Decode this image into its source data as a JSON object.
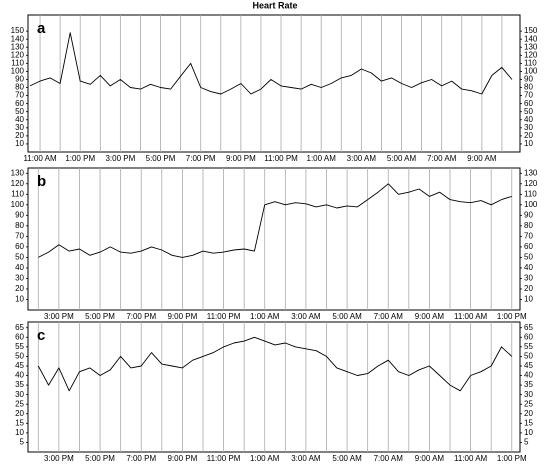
{
  "title": "Heart Rate",
  "chart_data": [
    {
      "type": "line",
      "label": "a",
      "color": "#000000",
      "grid": true,
      "xlim": [
        0.4,
        24.9
      ],
      "ylim": [
        0,
        170
      ],
      "yticks": [
        10,
        20,
        30,
        40,
        50,
        60,
        70,
        80,
        90,
        100,
        110,
        120,
        130,
        140,
        150
      ],
      "xticks": [
        {
          "value": 1,
          "label": "11:00 AM"
        },
        {
          "value": 2,
          "label": null
        },
        {
          "value": 3,
          "label": "1:00 PM"
        },
        {
          "value": 4,
          "label": null
        },
        {
          "value": 5,
          "label": "3:00 PM"
        },
        {
          "value": 6,
          "label": null
        },
        {
          "value": 7,
          "label": "5:00 PM"
        },
        {
          "value": 8,
          "label": null
        },
        {
          "value": 9,
          "label": "7:00 PM"
        },
        {
          "value": 10,
          "label": null
        },
        {
          "value": 11,
          "label": "9:00 PM"
        },
        {
          "value": 12,
          "label": null
        },
        {
          "value": 13,
          "label": "11:00 PM"
        },
        {
          "value": 14,
          "label": null
        },
        {
          "value": 15,
          "label": "1:00 AM"
        },
        {
          "value": 16,
          "label": null
        },
        {
          "value": 17,
          "label": "3:00 AM"
        },
        {
          "value": 18,
          "label": null
        },
        {
          "value": 19,
          "label": "5:00 AM"
        },
        {
          "value": 20,
          "label": null
        },
        {
          "value": 21,
          "label": "7:00 AM"
        },
        {
          "value": 22,
          "label": null
        },
        {
          "value": 23,
          "label": "9:00 AM"
        },
        {
          "value": 24,
          "label": null
        }
      ],
      "x": [
        0.5,
        1,
        1.5,
        2,
        2.5,
        3,
        3.5,
        4,
        4.5,
        5,
        5.5,
        6,
        6.5,
        7,
        7.5,
        8,
        8.5,
        9,
        9.5,
        10,
        10.5,
        11,
        11.5,
        12,
        12.5,
        13,
        13.5,
        14,
        14.5,
        15,
        15.5,
        16,
        16.5,
        17,
        17.5,
        18,
        18.5,
        19,
        19.5,
        20,
        20.5,
        21,
        21.5,
        22,
        22.5,
        23,
        23.5,
        24,
        24.5
      ],
      "values": [
        82,
        88,
        92,
        85,
        148,
        88,
        84,
        95,
        82,
        90,
        80,
        78,
        84,
        80,
        78,
        94,
        110,
        80,
        75,
        72,
        78,
        85,
        72,
        78,
        90,
        82,
        80,
        78,
        84,
        80,
        85,
        92,
        95,
        103,
        98,
        88,
        92,
        85,
        80,
        86,
        90,
        82,
        88,
        78,
        76,
        72,
        95,
        105,
        90
      ]
    },
    {
      "type": "line",
      "label": "b",
      "color": "#000000",
      "grid": true,
      "xlim": [
        1.5,
        25.4
      ],
      "ylim": [
        0,
        135
      ],
      "yticks": [
        10,
        20,
        30,
        40,
        50,
        60,
        70,
        80,
        90,
        100,
        110,
        120,
        130
      ],
      "xticks": [
        {
          "value": 2,
          "label": null
        },
        {
          "value": 3,
          "label": "3:00 PM"
        },
        {
          "value": 4,
          "label": null
        },
        {
          "value": 5,
          "label": "5:00 PM"
        },
        {
          "value": 6,
          "label": null
        },
        {
          "value": 7,
          "label": "7:00 PM"
        },
        {
          "value": 8,
          "label": null
        },
        {
          "value": 9,
          "label": "9:00 PM"
        },
        {
          "value": 10,
          "label": null
        },
        {
          "value": 11,
          "label": "11:00 PM"
        },
        {
          "value": 12,
          "label": null
        },
        {
          "value": 13,
          "label": "1:00 AM"
        },
        {
          "value": 14,
          "label": null
        },
        {
          "value": 15,
          "label": "3:00 AM"
        },
        {
          "value": 16,
          "label": null
        },
        {
          "value": 17,
          "label": "5:00 AM"
        },
        {
          "value": 18,
          "label": null
        },
        {
          "value": 19,
          "label": "7:00 AM"
        },
        {
          "value": 20,
          "label": null
        },
        {
          "value": 21,
          "label": "9:00 AM"
        },
        {
          "value": 22,
          "label": null
        },
        {
          "value": 23,
          "label": "11:00 AM"
        },
        {
          "value": 24,
          "label": null
        },
        {
          "value": 25,
          "label": "1:00 PM"
        }
      ],
      "x": [
        2,
        2.5,
        3,
        3.5,
        4,
        4.5,
        5,
        5.5,
        6,
        6.5,
        7,
        7.5,
        8,
        8.5,
        9,
        9.5,
        10,
        10.5,
        11,
        11.5,
        12,
        12.5,
        13,
        13.5,
        14,
        14.5,
        15,
        15.5,
        16,
        16.5,
        17,
        17.5,
        18,
        18.5,
        19,
        19.5,
        20,
        20.5,
        21,
        21.5,
        22,
        22.5,
        23,
        23.5,
        24,
        24.5,
        25
      ],
      "values": [
        50,
        55,
        62,
        56,
        58,
        52,
        55,
        60,
        55,
        54,
        56,
        60,
        57,
        52,
        50,
        52,
        56,
        54,
        55,
        57,
        58,
        56,
        100,
        103,
        100,
        102,
        101,
        98,
        100,
        97,
        99,
        98,
        105,
        112,
        120,
        110,
        112,
        115,
        108,
        112,
        105,
        103,
        102,
        104,
        100,
        105,
        108
      ]
    },
    {
      "type": "line",
      "label": "c",
      "color": "#000000",
      "grid": true,
      "xlim": [
        1.5,
        25.4
      ],
      "ylim": [
        0,
        68
      ],
      "yticks": [
        5,
        10,
        15,
        20,
        25,
        30,
        35,
        40,
        45,
        50,
        55,
        60,
        65
      ],
      "xticks": [
        {
          "value": 2,
          "label": null
        },
        {
          "value": 3,
          "label": "3:00 PM"
        },
        {
          "value": 4,
          "label": null
        },
        {
          "value": 5,
          "label": "5:00 PM"
        },
        {
          "value": 6,
          "label": null
        },
        {
          "value": 7,
          "label": "7:00 PM"
        },
        {
          "value": 8,
          "label": null
        },
        {
          "value": 9,
          "label": "9:00 PM"
        },
        {
          "value": 10,
          "label": null
        },
        {
          "value": 11,
          "label": "11:00 PM"
        },
        {
          "value": 12,
          "label": null
        },
        {
          "value": 13,
          "label": "1:00 AM"
        },
        {
          "value": 14,
          "label": null
        },
        {
          "value": 15,
          "label": "3:00 AM"
        },
        {
          "value": 16,
          "label": null
        },
        {
          "value": 17,
          "label": "5:00 AM"
        },
        {
          "value": 18,
          "label": null
        },
        {
          "value": 19,
          "label": "7:00 AM"
        },
        {
          "value": 20,
          "label": null
        },
        {
          "value": 21,
          "label": "9:00 AM"
        },
        {
          "value": 22,
          "label": null
        },
        {
          "value": 23,
          "label": "11:00 AM"
        },
        {
          "value": 24,
          "label": null
        },
        {
          "value": 25,
          "label": "1:00 PM"
        }
      ],
      "x": [
        2,
        2.5,
        3,
        3.5,
        4,
        4.5,
        5,
        5.5,
        6,
        6.5,
        7,
        7.5,
        8,
        8.5,
        9,
        9.5,
        10,
        10.5,
        11,
        11.5,
        12,
        12.5,
        13,
        13.5,
        14,
        14.5,
        15,
        15.5,
        16,
        16.5,
        17,
        17.5,
        18,
        18.5,
        19,
        19.5,
        20,
        20.5,
        21,
        21.5,
        22,
        22.5,
        23,
        23.5,
        24,
        24.5,
        25
      ],
      "values": [
        45,
        35,
        44,
        32,
        42,
        44,
        40,
        43,
        50,
        44,
        45,
        52,
        46,
        45,
        44,
        48,
        50,
        52,
        55,
        57,
        58,
        60,
        58,
        56,
        57,
        55,
        54,
        53,
        50,
        44,
        42,
        40,
        41,
        45,
        48,
        42,
        40,
        43,
        45,
        40,
        35,
        32,
        40,
        42,
        45,
        55,
        50
      ]
    }
  ]
}
